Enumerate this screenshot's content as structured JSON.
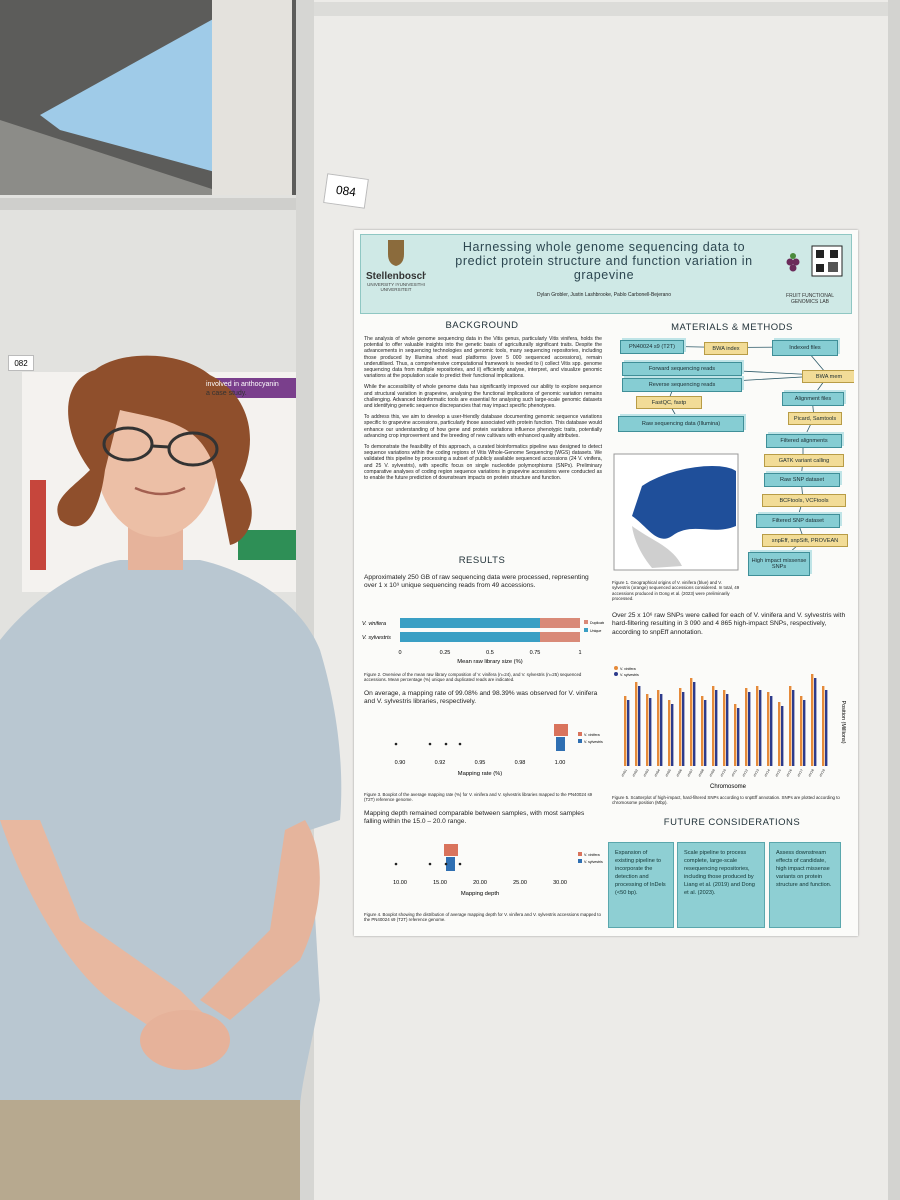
{
  "poster_number": "084",
  "neighbor_poster": {
    "number": "082",
    "title_line_1": "involved in anthocyanin",
    "title_line_2": "a case study."
  },
  "poster": {
    "title": "Harnessing whole genome sequencing data to predict protein structure and function variation in grapevine",
    "university": "Stellenbosch",
    "university_sub": "UNIVERSITY IYUNIVESITHI UNIVERSITEIT",
    "authors": "Dylan Grobler, Justin Lashbrooke, Pablo Carbonell-Bejerano",
    "lab": "FRUIT FUNCTIONAL GENOMICS LAB",
    "background": {
      "heading": "BACKGROUND",
      "paragraphs": [
        "The analysis of whole genome sequencing data in the Vitis genus, particularly Vitis vinifera, holds the potential to offer valuable insights into the genetic basis of agriculturally significant traits. Despite the advancements in sequencing technologies and genomic tools, many sequencing repositories, including those produced by Illumina short read platforms (over 5 000 sequenced accessions), remain underutilised. Thus, a comprehensive computational framework is needed to i) collect Vitis spp. genome sequencing data from multiple repositories, and ii) efficiently analyse, interpret, and visualize genomic variations at the population scale to predict their functional implications.",
        "While the accessibility of whole genome data has significantly improved our ability to explore sequence and structural variation in grapevine, analysing the functional implications of genomic variation remains challenging. Advanced bioinformatic tools are essential for analysing such large-scale genomic datasets and identifying genetic sequence discrepancies that may impact specific phenotypes.",
        "To address this, we aim to develop a user-friendly database documenting genomic sequence variations specific to grapevine accessions, particularly those associated with protein function. This database would enhance our understanding of how gene and protein variations influence phenotypic traits, potentially advancing crop improvement and the breeding of new cultivars with enhanced quality attributes.",
        "To demonstrate the feasibility of this approach, a curated bioinformatics pipeline was designed to detect sequence variations within the coding regions of Vitis Whole-Genome Sequencing (WGS) datasets. We validated this pipeline by processing a subset of publicly available sequenced accessions (24 V. vinifera, and 25 V. sylvestris), with specific focus on single nucleotide polymorphisms (SNPs). Preliminary comparative analyses of coding region sequence variations in grapevine accessions were conducted as to enable the future prediction of downstream impacts on protein structure and function."
      ]
    },
    "results": {
      "heading": "RESULTS",
      "text_1": "Approximately 250 GB of raw sequencing data were processed, representing over 1 x 10⁹ unique sequencing reads from 49 accessions.",
      "figure_2": {
        "categories": [
          "V. vinifera",
          "V. sylvestris"
        ],
        "legend": [
          "Duplicate",
          "Unique"
        ],
        "ticks": [
          "0",
          "0.25",
          "0.5",
          "0.75",
          "1"
        ],
        "axis_label": "Mean raw library size (%)",
        "caption": "Figure 2. Overview of the mean raw library composition of V. vinifera (n=24), and V. sylvestris (n=25) sequenced accessions. Mean percentage (%) unique and duplicated reads are indicated."
      },
      "text_2": "On average, a mapping rate of 99.08% and 98.39% was observed for V. vinifera and V. sylvestris libraries, respectively.",
      "figure_3": {
        "legend": [
          "V. vinifera",
          "V. sylvestris"
        ],
        "ticks": [
          "0.90",
          "0.92",
          "0.95",
          "0.98",
          "1.00"
        ],
        "axis_label": "Mapping rate (%)",
        "caption": "Figure 3. Boxplot of the average mapping rate (%) for V. vinifera and V. sylvestris libraries mapped to the PN40024 s9 (T2T) reference genome."
      },
      "text_3": "Mapping depth remained comparable between samples, with most samples falling within the 15.0 – 20.0 range.",
      "figure_4": {
        "legend": [
          "V. vinifera",
          "V. sylvestris"
        ],
        "ticks": [
          "10.00",
          "15.00",
          "20.00",
          "25.00",
          "30.00"
        ],
        "axis_label": "Mapping depth",
        "caption": "Figure 4. Boxplot showing the distribution of average mapping depth for V. vinifera and V. sylvestris accessions mapped to the PN40024 s9 (T2T) reference genome."
      }
    },
    "methods": {
      "heading": "MATERIALS & METHODS",
      "nodes": [
        "PN40024 s9 (T2T)",
        "BWA index",
        "Indexed files",
        "Forward sequencing reads",
        "Reverse sequencing reads",
        "BWA mem",
        "FastQC, fastp",
        "Alignment files",
        "Picard, Samtools",
        "Raw sequencing data (Illumina)",
        "Filtered alignments",
        "GATK variant calling",
        "Raw SNP dataset",
        "BCFtools, VCFtools",
        "Filtered SNP dataset",
        "snpEff, snpSift, PROVEAN",
        "High impact missense SNPs"
      ],
      "figure_1_caption": "Figure 1. Geographical origins of V. vinifera (blue) and V. sylvestris (orange) sequenced accessions considered. In total, 49 accessions produced in Dong et al. (2023) were preliminarily processed.",
      "text": "Over 25 x 10⁶ raw SNPs were called for each of V. vinifera and V. sylvestris with hard-filtering resulting in 3 090 and 4 865 high-impact SNPs, respectively, according to snpEff annotation.",
      "figure_5": {
        "legend": [
          "V. vinifera",
          "V. sylvestris"
        ],
        "chromosomes": [
          "chr01",
          "chr02",
          "chr03",
          "chr04",
          "chr05",
          "chr06",
          "chr07",
          "chr08",
          "chr09",
          "chr10",
          "chr11",
          "chr12",
          "chr13",
          "chr14",
          "chr15",
          "chr16",
          "chr17",
          "chr18",
          "chr19"
        ],
        "x_label": "Chromosome",
        "y_label": "Position (Millions)",
        "caption": "Figure 5. Scatterplot of high-impact, hard-filtered SNPs according to snpEff annotation. SNPs are plotted according to chromosome position (Mbp)."
      }
    },
    "future": {
      "heading": "FUTURE CONSIDERATIONS",
      "items": [
        "Expansion of existing pipeline to incorporate the detection and processing of InDels (<50 bp).",
        "Scale pipeline to process complete, large-scale resequencing repositories, including those produced by Liang et al. (2019) and Dong et al. (2023).",
        "Assess downstream effects of candidate, high impact missense variants on protein structure and function."
      ]
    }
  }
}
